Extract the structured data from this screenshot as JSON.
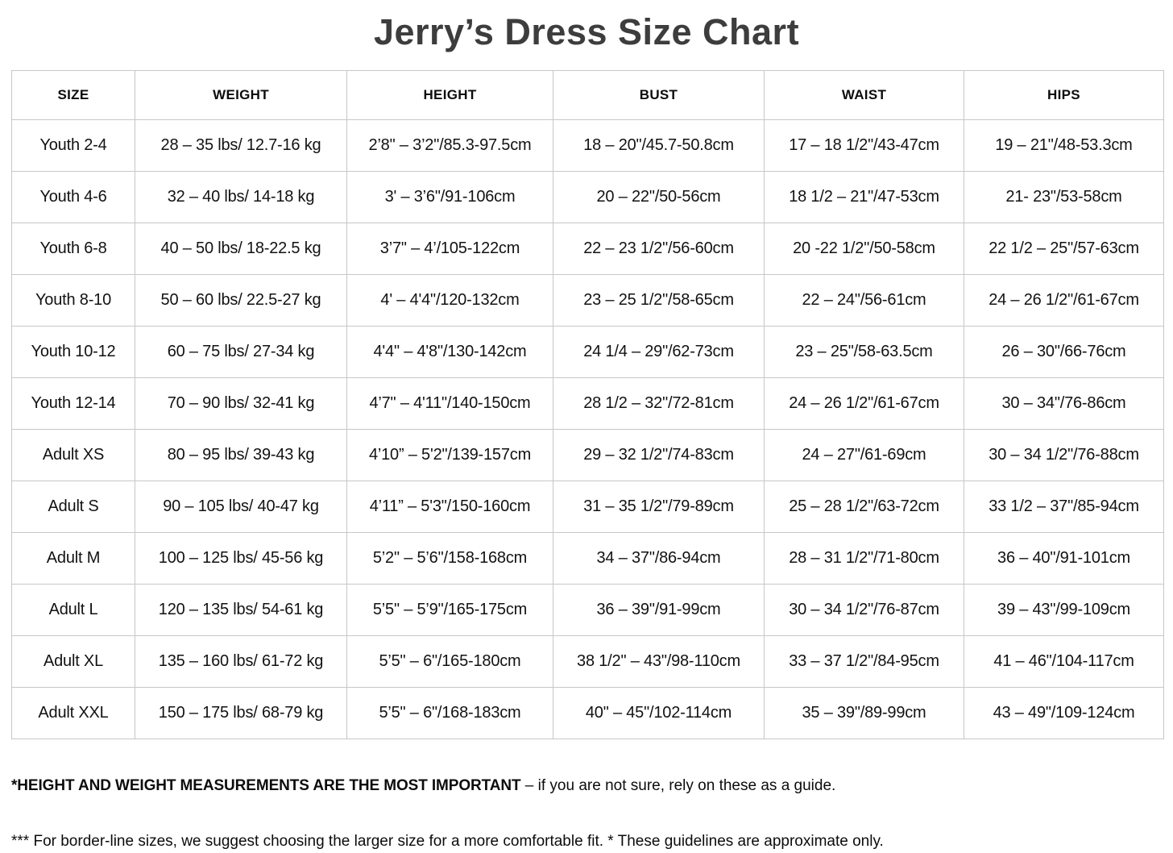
{
  "title": "Jerry’s Dress Size Chart",
  "table": {
    "headers": [
      "SIZE",
      "WEIGHT",
      "HEIGHT",
      "BUST",
      "WAIST",
      "HIPS"
    ],
    "rows": [
      [
        "Youth 2-4",
        "28 – 35 lbs/ 12.7-16 kg",
        "2’8\" – 3’2\"/85.3-97.5cm",
        "18 – 20\"/45.7-50.8cm",
        "17 – 18 1/2\"/43-47cm",
        "19 – 21\"/48-53.3cm"
      ],
      [
        "Youth 4-6",
        "32 – 40 lbs/ 14-18 kg",
        "3' – 3’6\"/91-106cm",
        "20 – 22\"/50-56cm",
        "18 1/2 – 21\"/47-53cm",
        "21- 23\"/53-58cm"
      ],
      [
        "Youth 6-8",
        "40 – 50 lbs/ 18-22.5 kg",
        "3’7\" – 4’/105-122cm",
        "22 – 23 1/2\"/56-60cm",
        "20 -22 1/2\"/50-58cm",
        "22 1/2 – 25\"/57-63cm"
      ],
      [
        "Youth 8-10",
        "50 – 60 lbs/ 22.5-27 kg",
        "4' – 4'4\"/120-132cm",
        "23 – 25 1/2\"/58-65cm",
        "22 – 24\"/56-61cm",
        "24 – 26 1/2\"/61-67cm"
      ],
      [
        "Youth 10-12",
        "60 – 75 lbs/ 27-34 kg",
        "4'4\" – 4'8\"/130-142cm",
        "24 1/4 – 29\"/62-73cm",
        "23 – 25\"/58-63.5cm",
        "26 – 30\"/66-76cm"
      ],
      [
        "Youth 12-14",
        "70 – 90 lbs/ 32-41 kg",
        "4’7\" – 4'11\"/140-150cm",
        "28 1/2 – 32\"/72-81cm",
        "24 – 26 1/2\"/61-67cm",
        "30 – 34\"/76-86cm"
      ],
      [
        "Adult XS",
        "80 – 95 lbs/ 39-43 kg",
        "4’10” – 5'2\"/139-157cm",
        "29 – 32 1/2\"/74-83cm",
        "24 – 27\"/61-69cm",
        "30 – 34 1/2\"/76-88cm"
      ],
      [
        "Adult S",
        "90 – 105 lbs/ 40-47 kg",
        "4’11” – 5'3\"/150-160cm",
        "31 – 35 1/2\"/79-89cm",
        "25 – 28 1/2\"/63-72cm",
        "33 1/2 – 37\"/85-94cm"
      ],
      [
        "Adult M",
        "100 – 125 lbs/ 45-56 kg",
        "5’2\" – 5’6\"/158-168cm",
        "34 – 37\"/86-94cm",
        "28 – 31 1/2\"/71-80cm",
        "36 – 40\"/91-101cm"
      ],
      [
        "Adult L",
        "120 – 135 lbs/ 54-61 kg",
        "5’5\" – 5’9\"/165-175cm",
        "36 – 39\"/91-99cm",
        "30 – 34 1/2\"/76-87cm",
        "39 – 43\"/99-109cm"
      ],
      [
        "Adult XL",
        "135 – 160 lbs/ 61-72 kg",
        "5’5\" – 6\"/165-180cm",
        "38 1/2\" – 43\"/98-110cm",
        "33 – 37 1/2\"/84-95cm",
        "41 – 46\"/104-117cm"
      ],
      [
        "Adult XXL",
        "150 – 175 lbs/ 68-79 kg",
        "5’5\" – 6\"/168-183cm",
        "40\" – 45\"/102-114cm",
        "35 – 39\"/89-99cm",
        "43 – 49\"/109-124cm"
      ]
    ]
  },
  "notes": {
    "note1_bold": "*HEIGHT AND WEIGHT MEASUREMENTS ARE THE MOST IMPORTANT",
    "note1_rest": " – if you are not sure, rely on these as a guide.",
    "note2": "*** For border-line sizes, we suggest choosing the larger size for a more comfortable fit. * These guidelines are approximate only."
  },
  "colors": {
    "title_text": "#3d3d3d",
    "body_text": "#121212",
    "grid_border": "#c7c7c7",
    "background": "#ffffff"
  }
}
